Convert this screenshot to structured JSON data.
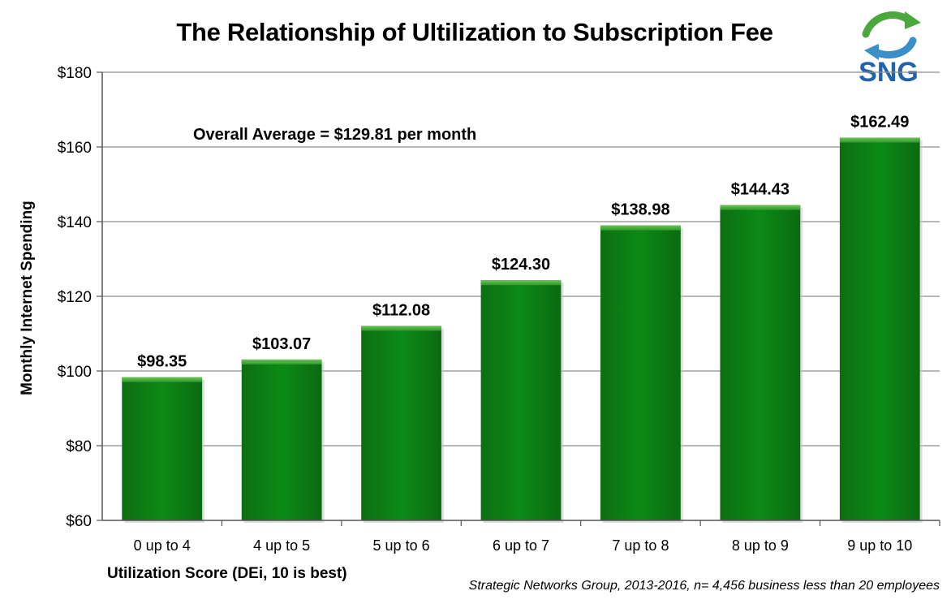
{
  "chart_data": {
    "type": "bar",
    "title": "The Relationship of Ultilization to Subscription Fee",
    "xlabel": "Utilization Score (DEi, 10 is best)",
    "ylabel": "Monthly Internet Spending",
    "categories": [
      "0 up to 4",
      "4 up to 5",
      "5 up to 6",
      "6 up to 7",
      "7 up to 8",
      "8 up to 9",
      "9 up to 10"
    ],
    "values": [
      98.35,
      103.07,
      112.08,
      124.3,
      138.98,
      144.43,
      162.49
    ],
    "data_labels": [
      "$98.35",
      "$103.07",
      "$112.08",
      "$124.30",
      "$138.98",
      "$144.43",
      "$162.49"
    ],
    "ylim": [
      60,
      180
    ],
    "y_ticks": [
      60,
      80,
      100,
      120,
      140,
      160,
      180
    ],
    "y_tick_labels": [
      "$60",
      "$80",
      "$100",
      "$120",
      "$140",
      "$160",
      "$180"
    ],
    "grid": true,
    "annotation": "Overall Average = $129.81 per month",
    "source": "Strategic Networks Group, 2013-2016, n= 4,456 business less than 20 employees",
    "colors": {
      "bar": "#0a7a12",
      "bar_top": "#5fb84a",
      "grid": "#8c8c8c"
    }
  },
  "logo": {
    "text": "SNG",
    "color": "#1f63ae",
    "icon": "recycle-arrows-icon"
  }
}
